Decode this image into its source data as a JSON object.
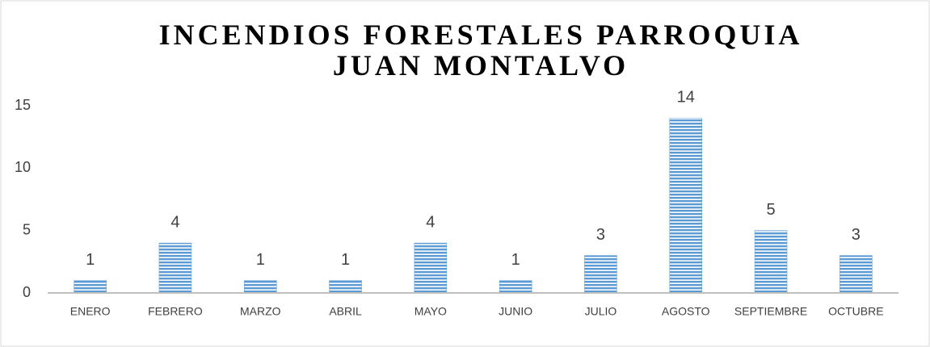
{
  "chart_data": {
    "type": "bar",
    "title": "INCENDIOS FORESTALES PARROQUIA JUAN MONTALVO",
    "categories": [
      "ENERO",
      "FEBRERO",
      "MARZO",
      "ABRIL",
      "MAYO",
      "JUNIO",
      "JULIO",
      "AGOSTO",
      "SEPTIEMBRE",
      "OCTUBRE"
    ],
    "values": [
      1,
      4,
      1,
      1,
      4,
      1,
      3,
      14,
      5,
      3
    ],
    "color": "#5b9bd5",
    "ylim": [
      0,
      15
    ],
    "yticks": [
      0,
      5,
      10,
      15
    ],
    "grid": false,
    "data_labels": true
  }
}
